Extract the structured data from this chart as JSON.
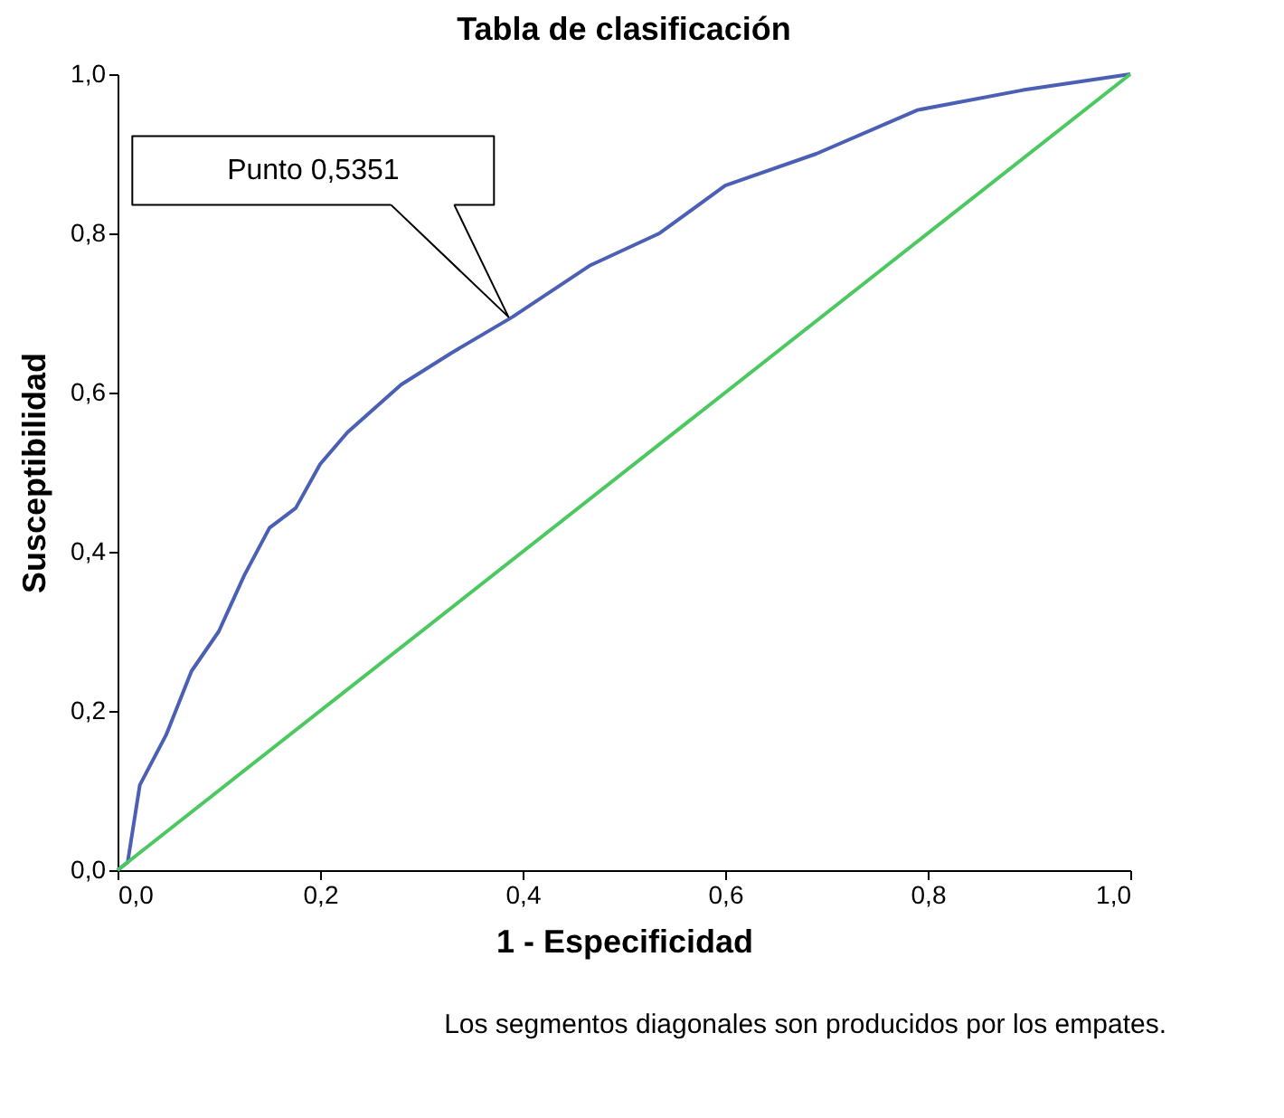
{
  "chart_data": {
    "type": "line",
    "title": "Tabla de clasificación",
    "xlabel": "1 - Especificidad",
    "ylabel": "Susceptibilidad",
    "xlim": [
      0,
      1
    ],
    "ylim": [
      0,
      1
    ],
    "xticks": [
      {
        "value": 0,
        "label": "0,0"
      },
      {
        "value": 0.2,
        "label": "0,2"
      },
      {
        "value": 0.4,
        "label": "0,4"
      },
      {
        "value": 0.6,
        "label": "0,6"
      },
      {
        "value": 0.8,
        "label": "0,8"
      },
      {
        "value": 1,
        "label": "1,0"
      }
    ],
    "yticks": [
      {
        "value": 0,
        "label": "0,0"
      },
      {
        "value": 0.2,
        "label": "0,2"
      },
      {
        "value": 0.4,
        "label": "0,4"
      },
      {
        "value": 0.6,
        "label": "0,6"
      },
      {
        "value": 0.8,
        "label": "0,8"
      },
      {
        "value": 1,
        "label": "1,0"
      }
    ],
    "grid": false,
    "marker": "none",
    "line_style": "solid",
    "series": [
      {
        "color": "#4b5fb4",
        "x": [
          0,
          0.01,
          0.022,
          0.048,
          0.073,
          0.1,
          0.125,
          0.15,
          0.176,
          0.2,
          0.227,
          0.28,
          0.33,
          0.39,
          0.467,
          0.535,
          0.6,
          0.69,
          0.79,
          0.894,
          1
        ],
        "values": [
          0,
          0.01,
          0.107,
          0.17,
          0.25,
          0.3,
          0.37,
          0.43,
          0.455,
          0.51,
          0.55,
          0.61,
          0.65,
          0.695,
          0.76,
          0.8,
          0.86,
          0.9,
          0.955,
          0.98,
          1
        ]
      },
      {
        "color": "#4cc860",
        "x": [
          0,
          1
        ],
        "values": [
          0,
          1
        ]
      }
    ],
    "annotations": [
      "Punto 0,5351",
      "Los segmentos diagonales son producidos por los empates."
    ]
  }
}
